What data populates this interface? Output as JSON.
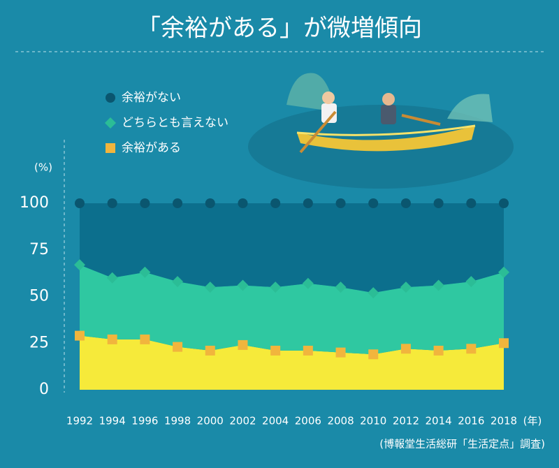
{
  "chart_data": {
    "type": "stacked-area",
    "title": "「余裕がある」が微増傾向",
    "y_unit": "(%)",
    "x_unit": "(年)",
    "source": "(博報堂生活総研「生活定点」調査)",
    "categories": [
      "1992",
      "1994",
      "1996",
      "1998",
      "2000",
      "2002",
      "2004",
      "2006",
      "2008",
      "2010",
      "2012",
      "2014",
      "2016",
      "2018"
    ],
    "series": [
      {
        "name": "余裕がある",
        "color": "#f6ea3a",
        "marker": "square",
        "marker_color": "#f1b53d",
        "values": [
          29,
          27,
          27,
          23,
          21,
          24,
          21,
          21,
          20,
          19,
          22,
          21,
          22,
          25
        ]
      },
      {
        "name": "どちらとも言えない",
        "color": "#2fc8a1",
        "marker": "diamond",
        "marker_color": "#2bbd96",
        "values": [
          38,
          33,
          36,
          35,
          34,
          32,
          34,
          36,
          35,
          33,
          33,
          35,
          36,
          38
        ]
      },
      {
        "name": "余裕がない",
        "color": "#0c6f8d",
        "marker": "circle",
        "marker_color": "#0a566f",
        "values": [
          33,
          40,
          37,
          42,
          45,
          44,
          45,
          43,
          45,
          48,
          45,
          44,
          42,
          37
        ]
      }
    ],
    "ylim": [
      0,
      100
    ],
    "yticks": [
      0,
      25,
      50,
      75,
      100
    ]
  }
}
